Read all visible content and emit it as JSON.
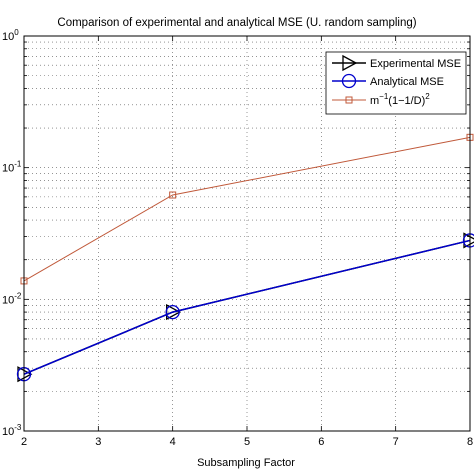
{
  "chart_data": {
    "type": "line",
    "title": "Comparison of experimental and analytical MSE (U. random sampling)",
    "xlabel": "Subsampling Factor",
    "ylabel": "",
    "x": [
      2,
      4,
      8
    ],
    "xlim": [
      2,
      8
    ],
    "xticks": [
      "2",
      "3",
      "4",
      "5",
      "6",
      "7",
      "8"
    ],
    "yscale": "log",
    "ylim": [
      0.001,
      1
    ],
    "yticks": [
      {
        "base": "10",
        "exp": "-3"
      },
      {
        "base": "10",
        "exp": "-2"
      },
      {
        "base": "10",
        "exp": "-1"
      },
      {
        "base": "10",
        "exp": "0"
      }
    ],
    "grid": true,
    "legend_position": "top-right",
    "series": [
      {
        "name": "Experimental MSE",
        "values": [
          0.0027,
          0.008,
          0.028
        ],
        "color": "#000000",
        "marker": "triangle-right"
      },
      {
        "name": "Analytical MSE",
        "values": [
          0.0027,
          0.008,
          0.028
        ],
        "color": "#0000cc",
        "marker": "circle"
      },
      {
        "name_parts": {
          "a": "m",
          "sup1": "−1",
          "b": "(1−1/D)",
          "sup2": "2"
        },
        "values": [
          0.0138,
          0.062,
          0.17
        ],
        "color": "#c0593a",
        "marker": "square"
      }
    ]
  }
}
